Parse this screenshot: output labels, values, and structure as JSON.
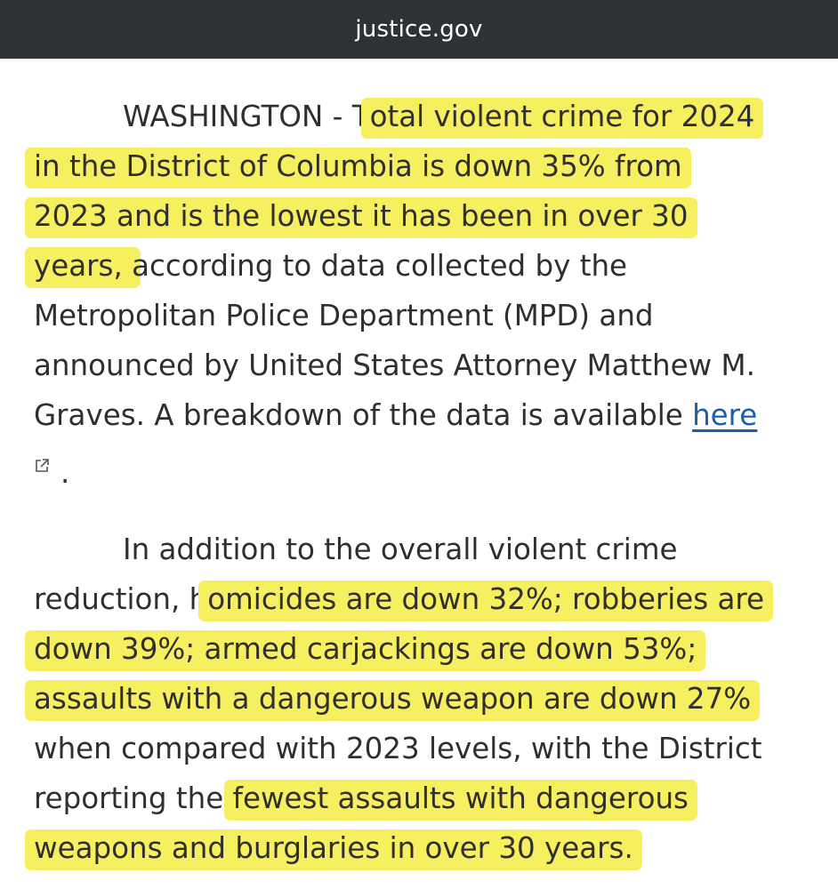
{
  "browser": {
    "url": "justice.gov"
  },
  "paragraph1": {
    "lines": [
      {
        "pre": "WASHINGTON - T",
        "hl": "otal violent crime for 2024",
        "post": ""
      },
      {
        "pre": "",
        "hl": "in the District of Columbia is down 35% from",
        "post": ""
      },
      {
        "pre": "",
        "hl": "2023 and is the lowest it has been in over 30",
        "post": ""
      },
      {
        "pre": "",
        "hl": "years, ",
        "post": "according to data collected by the"
      },
      {
        "pre": "Metropolitan Police Department (MPD) and",
        "hl": "",
        "post": ""
      },
      {
        "pre": "announced by United States Attorney Matthew M.",
        "hl": "",
        "post": ""
      },
      {
        "pre": "Graves. A breakdown of the data is available ",
        "hl": "",
        "post": ""
      }
    ],
    "link_text": "here",
    "end_punct": "."
  },
  "paragraph2": {
    "lines": [
      {
        "pre": "In addition to the overall violent crime",
        "hl": "",
        "post": ""
      },
      {
        "pre": "reduction, h",
        "hl": "omicides are down 32%; robberies are",
        "post": ""
      },
      {
        "pre": "",
        "hl": "down 39%; armed carjackings are down 53%;",
        "post": ""
      },
      {
        "pre": "",
        "hl": "assaults with a dangerous weapon are down 27%",
        "post": ""
      },
      {
        "pre": "when compared with 2023 levels, with the District",
        "hl": "",
        "post": ""
      },
      {
        "pre": "reporting the ",
        "hl": "fewest assaults with dangerous",
        "post": ""
      },
      {
        "pre": "",
        "hl": "weapons and burglaries in over 30 years.",
        "post": ""
      }
    ]
  },
  "colors": {
    "highlight": "#f6f060",
    "link": "#1a5fa8",
    "topbar": "#2f3235"
  }
}
